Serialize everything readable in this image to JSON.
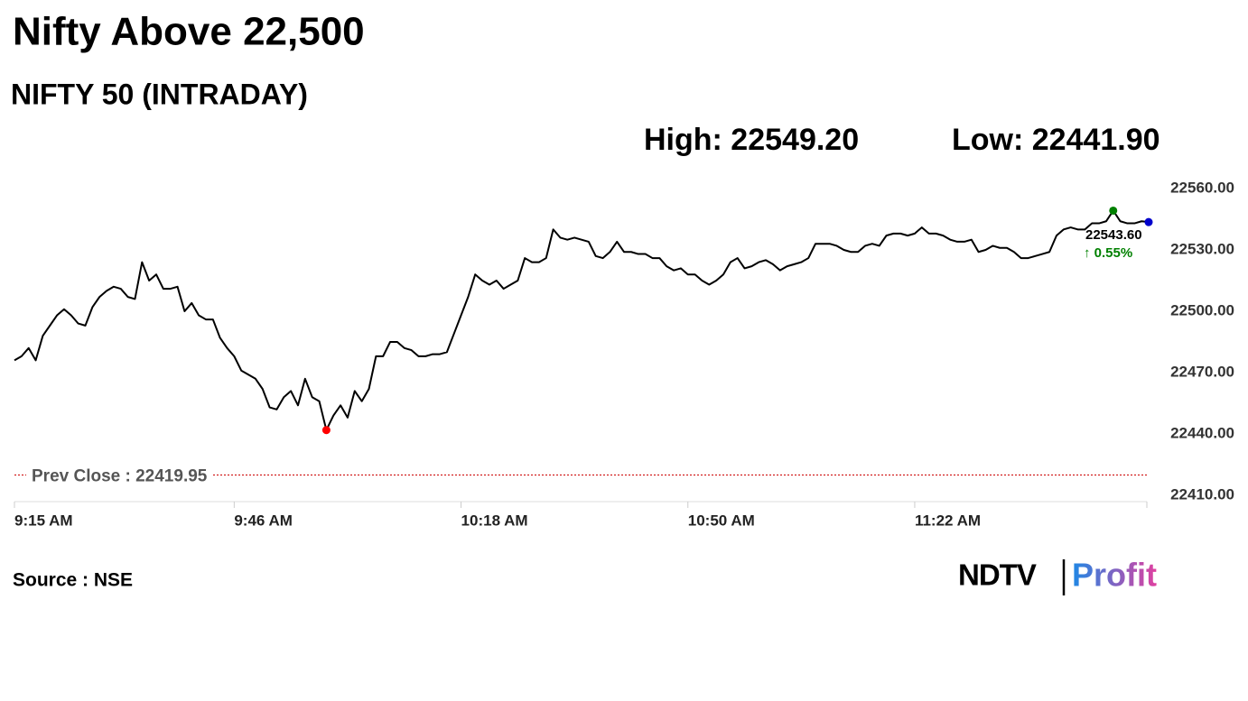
{
  "chart_data": {
    "type": "line",
    "title": "Nifty Above 22,500",
    "subtitle": "NIFTY 50 (INTRADAY)",
    "high_label": "High: 22549.20",
    "low_label": "Low: 22441.90",
    "source": "Source : NSE",
    "logo": {
      "left": "NDTV",
      "right": "Profit"
    },
    "x": [
      "9:15 AM",
      "9:16 AM",
      "9:17 AM",
      "9:18 AM",
      "9:19 AM",
      "9:20 AM",
      "9:21 AM",
      "9:22 AM",
      "9:23 AM",
      "9:24 AM",
      "9:25 AM",
      "9:26 AM",
      "9:27 AM",
      "9:28 AM",
      "9:29 AM",
      "9:30 AM",
      "9:31 AM",
      "9:32 AM",
      "9:33 AM",
      "9:34 AM",
      "9:35 AM",
      "9:36 AM",
      "9:37 AM",
      "9:38 AM",
      "9:39 AM",
      "9:40 AM",
      "9:41 AM",
      "9:42 AM",
      "9:43 AM",
      "9:44 AM",
      "9:45 AM",
      "9:46 AM",
      "9:47 AM",
      "9:48 AM",
      "9:49 AM",
      "9:50 AM",
      "9:51 AM",
      "9:52 AM",
      "9:53 AM",
      "9:54 AM",
      "9:55 AM",
      "9:56 AM",
      "9:57 AM",
      "9:58 AM",
      "9:59 AM",
      "10:00 AM",
      "10:01 AM",
      "10:02 AM",
      "10:03 AM",
      "10:04 AM",
      "10:05 AM",
      "10:06 AM",
      "10:07 AM",
      "10:08 AM",
      "10:09 AM",
      "10:10 AM",
      "10:11 AM",
      "10:12 AM",
      "10:13 AM",
      "10:14 AM",
      "10:15 AM",
      "10:16 AM",
      "10:17 AM",
      "10:18 AM",
      "10:19 AM",
      "10:20 AM",
      "10:21 AM",
      "10:22 AM",
      "10:23 AM",
      "10:24 AM",
      "10:25 AM",
      "10:26 AM",
      "10:27 AM",
      "10:28 AM",
      "10:29 AM",
      "10:30 AM",
      "10:31 AM",
      "10:32 AM",
      "10:33 AM",
      "10:34 AM",
      "10:35 AM",
      "10:36 AM",
      "10:37 AM",
      "10:38 AM",
      "10:39 AM",
      "10:40 AM",
      "10:41 AM",
      "10:42 AM",
      "10:43 AM",
      "10:44 AM",
      "10:45 AM",
      "10:46 AM",
      "10:47 AM",
      "10:48 AM",
      "10:49 AM",
      "10:50 AM",
      "10:51 AM",
      "10:52 AM",
      "10:53 AM",
      "10:54 AM",
      "10:55 AM",
      "10:56 AM",
      "10:57 AM",
      "10:58 AM",
      "10:59 AM",
      "11:00 AM",
      "11:01 AM",
      "11:02 AM",
      "11:03 AM",
      "11:04 AM",
      "11:05 AM",
      "11:06 AM",
      "11:07 AM",
      "11:08 AM",
      "11:09 AM",
      "11:10 AM",
      "11:11 AM",
      "11:12 AM",
      "11:13 AM",
      "11:14 AM",
      "11:15 AM",
      "11:16 AM",
      "11:17 AM",
      "11:18 AM",
      "11:19 AM",
      "11:20 AM",
      "11:21 AM",
      "11:22 AM",
      "11:23 AM",
      "11:24 AM",
      "11:25 AM",
      "11:26 AM",
      "11:27 AM",
      "11:28 AM",
      "11:29 AM",
      "11:30 AM",
      "11:31 AM",
      "11:32 AM",
      "11:33 AM",
      "11:34 AM",
      "11:35 AM",
      "11:36 AM",
      "11:37 AM",
      "11:38 AM",
      "11:39 AM",
      "11:40 AM",
      "11:41 AM",
      "11:42 AM",
      "11:43 AM",
      "11:44 AM",
      "11:45 AM",
      "11:46 AM",
      "11:47 AM",
      "11:48 AM",
      "11:49 AM",
      "11:50 AM",
      "11:51 AM",
      "11:52 AM",
      "11:53 AM",
      "11:54 AM",
      "11:55 AM"
    ],
    "xticks": [
      "9:15 AM",
      "9:46 AM",
      "10:18 AM",
      "10:50 AM",
      "11:22 AM"
    ],
    "series": [
      {
        "name": "NIFTY 50",
        "color": "#000000",
        "values": [
          22476,
          22478,
          22482,
          22476,
          22488,
          22493,
          22498,
          22501,
          22498,
          22494,
          22493,
          22502,
          22507,
          22510,
          22512,
          22511,
          22507,
          22506,
          22524,
          22515,
          22518,
          22511,
          22511,
          22512,
          22500,
          22504,
          22498,
          22496,
          22496,
          22487,
          22482,
          22478,
          22471,
          22469,
          22467,
          22462,
          22453,
          22452,
          22458,
          22461,
          22454,
          22467,
          22458,
          22456,
          22441.9,
          22449,
          22454,
          22448,
          22461,
          22456,
          22462,
          22478,
          22478,
          22485,
          22485,
          22482,
          22481,
          22478,
          22478,
          22479,
          22479,
          22480,
          22489,
          22498,
          22507,
          22518,
          22515,
          22513,
          22515,
          22511,
          22513,
          22515,
          22526,
          22524,
          22524,
          22526,
          22540,
          22536,
          22535,
          22536,
          22535,
          22534,
          22527,
          22526,
          22529,
          22534,
          22529,
          22529,
          22528,
          22528,
          22526,
          22526,
          22522,
          22520,
          22521,
          22518,
          22518,
          22515,
          22513,
          22515,
          22518,
          22524,
          22526,
          22521,
          22522,
          22524,
          22525,
          22523,
          22520,
          22522,
          22523,
          22524,
          22526,
          22533,
          22533,
          22533,
          22532,
          22530,
          22529,
          22529,
          22532,
          22533,
          22532,
          22537,
          22538,
          22538,
          22537,
          22538,
          22541,
          22538,
          22538,
          22537,
          22535,
          22534,
          22534,
          22535,
          22529,
          22530,
          22532,
          22531,
          22531,
          22529,
          22526,
          22526,
          22527,
          22528,
          22529,
          22537,
          22540,
          22541,
          22540,
          22540,
          22543,
          22543,
          22544,
          22549.2,
          22544,
          22543,
          22543,
          22544,
          22543.6
        ]
      }
    ],
    "low_color": "#ff0000",
    "high_color": "#008000",
    "last_color": "#0000cc",
    "last_value_label": "22543.60",
    "change_label": "↑ 0.55%",
    "change_color": "#008000",
    "reference_line": {
      "label": "Prev Close : 22419.95",
      "value": 22419.95,
      "color": "#cc0000"
    },
    "ylim": [
      22410,
      22560
    ],
    "yticks": [
      {
        "value": 22560,
        "label": "22560.00"
      },
      {
        "value": 22530,
        "label": "22530.00"
      },
      {
        "value": 22500,
        "label": "22500.00"
      },
      {
        "value": 22470,
        "label": "22470.00"
      },
      {
        "value": 22440,
        "label": "22440.00"
      },
      {
        "value": 22410,
        "label": "22410.00"
      }
    ],
    "grid": false
  }
}
